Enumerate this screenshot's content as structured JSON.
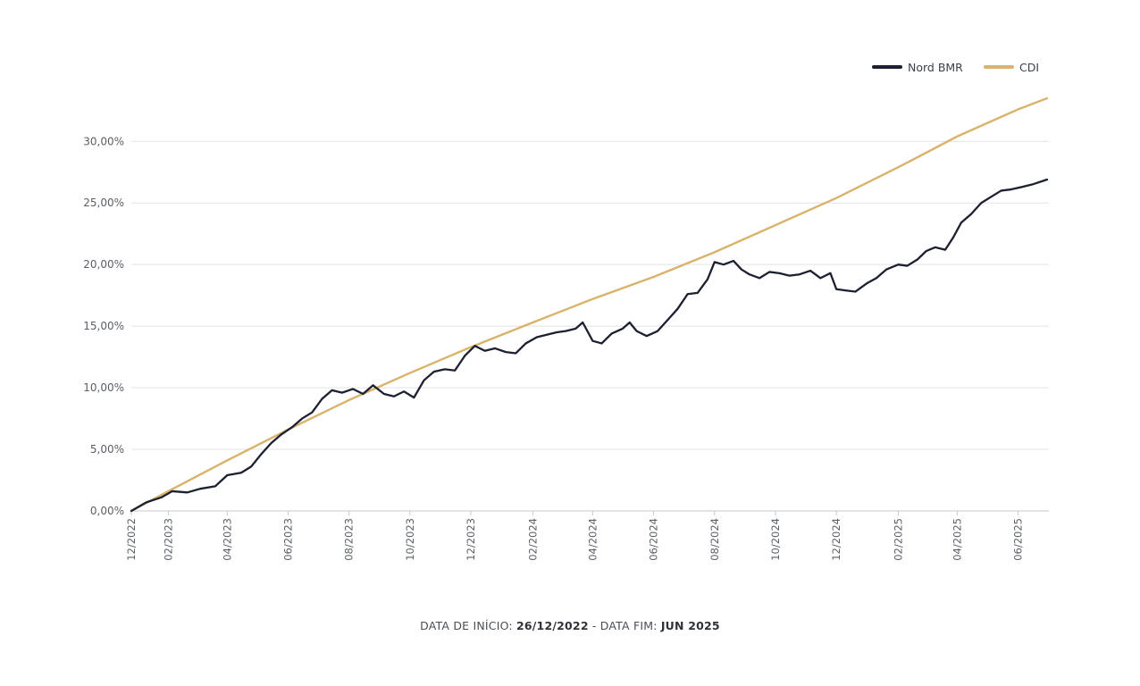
{
  "chart_data": {
    "type": "line",
    "ylim": [
      0,
      33.5
    ],
    "y_ticks": [
      0,
      5,
      10,
      15,
      20,
      25,
      30
    ],
    "y_tick_labels": [
      "0,00%",
      "5,00%",
      "10,00%",
      "15,00%",
      "20,00%",
      "25,00%",
      "30,00%"
    ],
    "x_range": [
      "2022-12-26",
      "2025-06-30"
    ],
    "x_ticks": [
      "2022-12-26",
      "2023-02-01",
      "2023-04-01",
      "2023-06-01",
      "2023-08-01",
      "2023-10-01",
      "2023-12-01",
      "2024-02-01",
      "2024-04-01",
      "2024-06-01",
      "2024-08-01",
      "2024-10-01",
      "2024-12-01",
      "2025-02-01",
      "2025-04-01",
      "2025-06-01"
    ],
    "x_tick_labels": [
      "12/2022",
      "02/2023",
      "04/2023",
      "06/2023",
      "08/2023",
      "10/2023",
      "12/2023",
      "02/2024",
      "04/2024",
      "06/2024",
      "08/2024",
      "10/2024",
      "12/2024",
      "02/2025",
      "04/2025",
      "06/2025"
    ],
    "grid": "horizontal",
    "legend": "top-right",
    "series": [
      {
        "name": "Nord BMR",
        "color": "#1c2030",
        "points": [
          [
            "2022-12-26",
            0.0
          ],
          [
            "2023-01-10",
            0.7
          ],
          [
            "2023-01-25",
            1.1
          ],
          [
            "2023-02-05",
            1.6
          ],
          [
            "2023-02-20",
            1.5
          ],
          [
            "2023-03-05",
            1.8
          ],
          [
            "2023-03-20",
            2.0
          ],
          [
            "2023-04-01",
            2.9
          ],
          [
            "2023-04-15",
            3.1
          ],
          [
            "2023-04-25",
            3.6
          ],
          [
            "2023-05-05",
            4.6
          ],
          [
            "2023-05-15",
            5.5
          ],
          [
            "2023-05-25",
            6.2
          ],
          [
            "2023-06-05",
            6.8
          ],
          [
            "2023-06-15",
            7.5
          ],
          [
            "2023-06-25",
            8.0
          ],
          [
            "2023-07-05",
            9.1
          ],
          [
            "2023-07-15",
            9.8
          ],
          [
            "2023-07-25",
            9.6
          ],
          [
            "2023-08-05",
            9.9
          ],
          [
            "2023-08-15",
            9.5
          ],
          [
            "2023-08-25",
            10.2
          ],
          [
            "2023-09-05",
            9.5
          ],
          [
            "2023-09-15",
            9.3
          ],
          [
            "2023-09-25",
            9.7
          ],
          [
            "2023-10-05",
            9.2
          ],
          [
            "2023-10-15",
            10.6
          ],
          [
            "2023-10-25",
            11.3
          ],
          [
            "2023-11-05",
            11.5
          ],
          [
            "2023-11-15",
            11.4
          ],
          [
            "2023-11-25",
            12.6
          ],
          [
            "2023-12-05",
            13.4
          ],
          [
            "2023-12-15",
            13.0
          ],
          [
            "2023-12-25",
            13.2
          ],
          [
            "2024-01-05",
            12.9
          ],
          [
            "2024-01-15",
            12.8
          ],
          [
            "2024-01-25",
            13.6
          ],
          [
            "2024-02-05",
            14.1
          ],
          [
            "2024-02-15",
            14.3
          ],
          [
            "2024-02-25",
            14.5
          ],
          [
            "2024-03-05",
            14.6
          ],
          [
            "2024-03-15",
            14.8
          ],
          [
            "2024-03-22",
            15.3
          ],
          [
            "2024-04-01",
            13.8
          ],
          [
            "2024-04-10",
            13.6
          ],
          [
            "2024-04-20",
            14.4
          ],
          [
            "2024-05-01",
            14.8
          ],
          [
            "2024-05-08",
            15.3
          ],
          [
            "2024-05-15",
            14.6
          ],
          [
            "2024-05-25",
            14.2
          ],
          [
            "2024-06-05",
            14.6
          ],
          [
            "2024-06-15",
            15.5
          ],
          [
            "2024-06-25",
            16.4
          ],
          [
            "2024-07-05",
            17.6
          ],
          [
            "2024-07-15",
            17.7
          ],
          [
            "2024-07-25",
            18.8
          ],
          [
            "2024-08-01",
            20.2
          ],
          [
            "2024-08-10",
            20.0
          ],
          [
            "2024-08-20",
            20.3
          ],
          [
            "2024-08-28",
            19.6
          ],
          [
            "2024-09-05",
            19.2
          ],
          [
            "2024-09-15",
            18.9
          ],
          [
            "2024-09-25",
            19.4
          ],
          [
            "2024-10-05",
            19.3
          ],
          [
            "2024-10-15",
            19.1
          ],
          [
            "2024-10-25",
            19.2
          ],
          [
            "2024-11-05",
            19.5
          ],
          [
            "2024-11-15",
            18.9
          ],
          [
            "2024-11-25",
            19.3
          ],
          [
            "2024-12-01",
            18.0
          ],
          [
            "2024-12-10",
            17.9
          ],
          [
            "2024-12-20",
            17.8
          ],
          [
            "2025-01-01",
            18.5
          ],
          [
            "2025-01-10",
            18.9
          ],
          [
            "2025-01-20",
            19.6
          ],
          [
            "2025-02-01",
            20.0
          ],
          [
            "2025-02-10",
            19.9
          ],
          [
            "2025-02-20",
            20.4
          ],
          [
            "2025-03-01",
            21.1
          ],
          [
            "2025-03-10",
            21.4
          ],
          [
            "2025-03-20",
            21.2
          ],
          [
            "2025-03-28",
            22.2
          ],
          [
            "2025-04-05",
            23.4
          ],
          [
            "2025-04-15",
            24.1
          ],
          [
            "2025-04-25",
            25.0
          ],
          [
            "2025-05-05",
            25.5
          ],
          [
            "2025-05-15",
            26.0
          ],
          [
            "2025-05-25",
            26.1
          ],
          [
            "2025-06-05",
            26.3
          ],
          [
            "2025-06-15",
            26.5
          ],
          [
            "2025-06-30",
            26.9
          ]
        ]
      },
      {
        "name": "CDI",
        "color": "#d9b36c",
        "points": [
          [
            "2022-12-26",
            0.0
          ],
          [
            "2023-02-01",
            1.6
          ],
          [
            "2023-04-01",
            4.1
          ],
          [
            "2023-06-01",
            6.6
          ],
          [
            "2023-08-01",
            9.0
          ],
          [
            "2023-10-01",
            11.2
          ],
          [
            "2023-12-01",
            13.3
          ],
          [
            "2024-02-01",
            15.3
          ],
          [
            "2024-04-01",
            17.2
          ],
          [
            "2024-06-01",
            19.0
          ],
          [
            "2024-08-01",
            21.0
          ],
          [
            "2024-10-01",
            23.2
          ],
          [
            "2024-12-01",
            25.4
          ],
          [
            "2025-02-01",
            27.9
          ],
          [
            "2025-04-01",
            30.4
          ],
          [
            "2025-06-01",
            32.6
          ],
          [
            "2025-06-30",
            33.5
          ]
        ]
      }
    ]
  },
  "footer": {
    "start_label": "DATA DE INÍCIO: ",
    "start_value": "26/12/2022",
    "separator": " - DATA FIM: ",
    "end_value": "JUN 2025"
  }
}
